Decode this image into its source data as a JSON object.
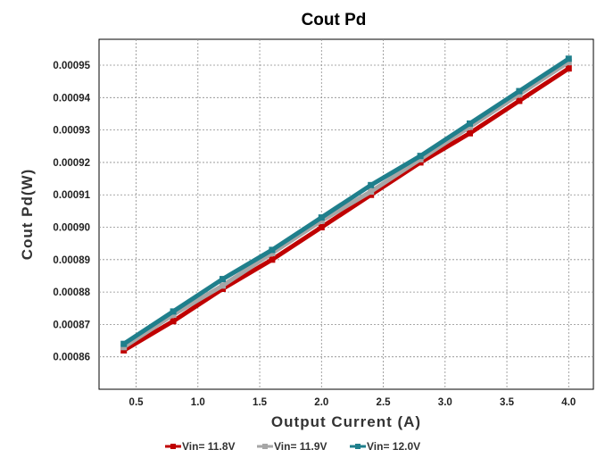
{
  "chart_data": {
    "type": "line",
    "title": "Cout Pd",
    "xlabel": "Output Current (A)",
    "ylabel": "Cout Pd(W)",
    "x": [
      0.4,
      0.8,
      1.2,
      1.6,
      2.0,
      2.4,
      2.8,
      3.2,
      3.6,
      4.0
    ],
    "xlim": [
      0.2,
      4.2
    ],
    "ylim": [
      0.00085,
      0.000958
    ],
    "x_ticks": [
      "0.5",
      "1.0",
      "1.5",
      "2.0",
      "2.5",
      "3.0",
      "3.5",
      "4.0"
    ],
    "x_tick_values": [
      0.5,
      1.0,
      1.5,
      2.0,
      2.5,
      3.0,
      3.5,
      4.0
    ],
    "y_ticks": [
      "0.00086",
      "0.00087",
      "0.00088",
      "0.00089",
      "0.00090",
      "0.00091",
      "0.00092",
      "0.00093",
      "0.00094",
      "0.00095"
    ],
    "y_tick_values": [
      0.00086,
      0.00087,
      0.00088,
      0.00089,
      0.0009,
      0.00091,
      0.00092,
      0.00093,
      0.00094,
      0.00095
    ],
    "grid": true,
    "legend_position": "bottom",
    "series": [
      {
        "name": "Vin= 11.8V",
        "color": "#c00000",
        "values": [
          0.000862,
          0.000871,
          0.000881,
          0.00089,
          0.0009,
          0.00091,
          0.00092,
          0.000929,
          0.000939,
          0.000949
        ]
      },
      {
        "name": "Vin= 11.9V",
        "color": "#a6a6a6",
        "values": [
          0.000863,
          0.000873,
          0.000882,
          0.000892,
          0.000902,
          0.000911,
          0.000921,
          0.000931,
          0.000941,
          0.000951
        ]
      },
      {
        "name": "Vin= 12.0V",
        "color": "#1f7f8c",
        "values": [
          0.000864,
          0.000874,
          0.000884,
          0.000893,
          0.000903,
          0.000913,
          0.000922,
          0.000932,
          0.000942,
          0.000952
        ]
      }
    ]
  }
}
